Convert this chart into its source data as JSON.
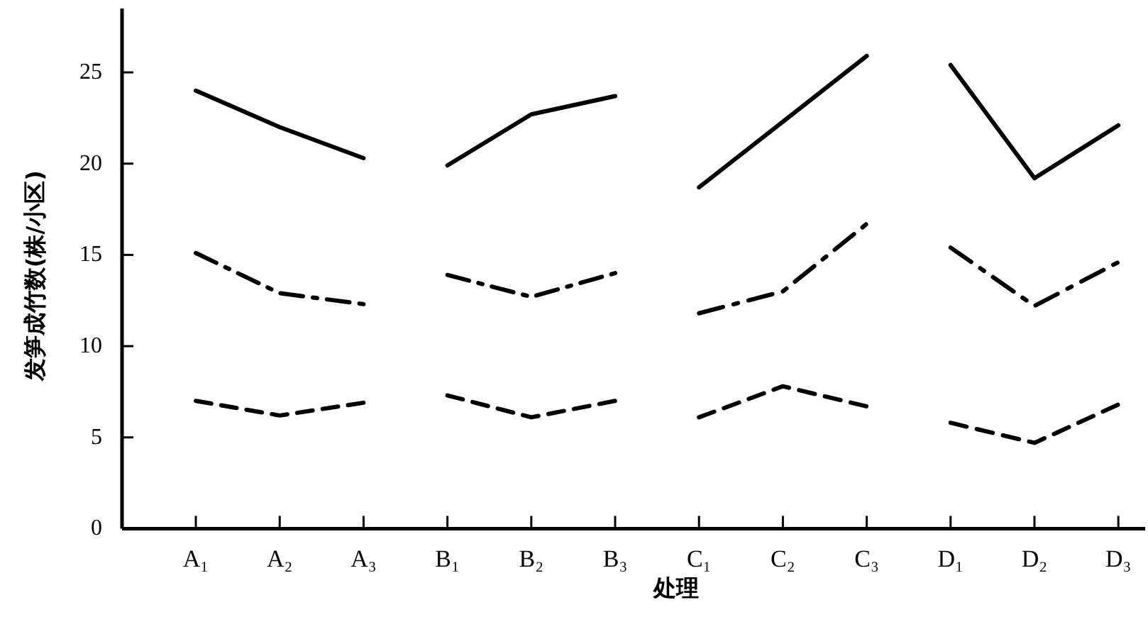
{
  "chart_data": {
    "type": "line",
    "ylabel": "发笋成竹数(株/小区)",
    "xlabel": "处理",
    "categories": [
      "A₁",
      "A₂",
      "A₃",
      "B₁",
      "B₂",
      "B₃",
      "C₁",
      "C₂",
      "C₃",
      "D₁",
      "D₂",
      "D₃"
    ],
    "ylim": [
      0,
      28.5
    ],
    "yticks": [
      0,
      5,
      10,
      15,
      20,
      25
    ],
    "grid": false,
    "marker": "none",
    "series": [
      {
        "color": "#000000",
        "line_style": "solid",
        "x": [
          "A₁",
          "A₂",
          "A₃"
        ],
        "values": [
          24.0,
          22.0,
          20.3
        ]
      },
      {
        "color": "#000000",
        "line_style": "solid",
        "x": [
          "B₁",
          "B₂",
          "B₃"
        ],
        "values": [
          19.9,
          22.7,
          23.7
        ]
      },
      {
        "color": "#000000",
        "line_style": "solid",
        "x": [
          "C₁",
          "C₂",
          "C₃"
        ],
        "values": [
          18.7,
          22.3,
          25.9
        ]
      },
      {
        "color": "#000000",
        "line_style": "solid",
        "x": [
          "D₁",
          "D₂",
          "D₃"
        ],
        "values": [
          25.4,
          19.2,
          22.1
        ]
      },
      {
        "color": "#000000",
        "line_style": "dashdot",
        "x": [
          "A₁",
          "A₂",
          "A₃"
        ],
        "values": [
          15.1,
          12.9,
          12.3
        ]
      },
      {
        "color": "#000000",
        "line_style": "dashdot",
        "x": [
          "B₁",
          "B₂",
          "B₃"
        ],
        "values": [
          13.9,
          12.7,
          14.0
        ]
      },
      {
        "color": "#000000",
        "line_style": "dashdot",
        "x": [
          "C₁",
          "C₂",
          "C₃"
        ],
        "values": [
          11.8,
          13.0,
          16.7
        ]
      },
      {
        "color": "#000000",
        "line_style": "dashdot",
        "x": [
          "D₁",
          "D₂",
          "D₃"
        ],
        "values": [
          15.4,
          12.2,
          14.6
        ]
      },
      {
        "color": "#000000",
        "line_style": "dashed",
        "x": [
          "A₁",
          "A₂",
          "A₃"
        ],
        "values": [
          7.0,
          6.2,
          6.9
        ]
      },
      {
        "color": "#000000",
        "line_style": "dashed",
        "x": [
          "B₁",
          "B₂",
          "B₃"
        ],
        "values": [
          7.3,
          6.1,
          7.0
        ]
      },
      {
        "color": "#000000",
        "line_style": "dashed",
        "x": [
          "C₁",
          "C₂",
          "C₃"
        ],
        "values": [
          6.1,
          7.8,
          6.7
        ]
      },
      {
        "color": "#000000",
        "line_style": "dashed",
        "x": [
          "D₁",
          "D₂",
          "D₃"
        ],
        "values": [
          5.8,
          4.7,
          6.8
        ]
      }
    ]
  }
}
